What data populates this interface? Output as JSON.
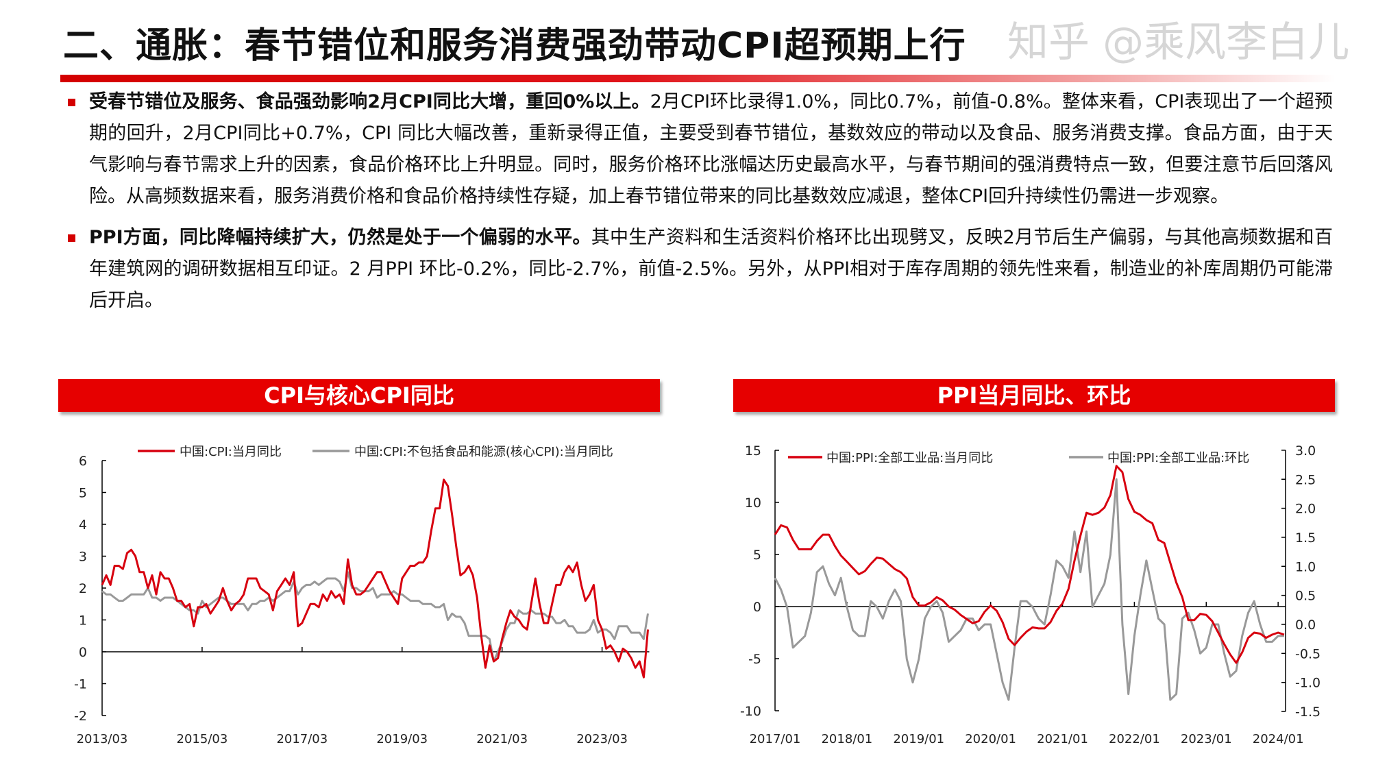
{
  "title": "二、通胀：春节错位和服务消费强劲带动CPI超预期上行",
  "bullets": [
    {
      "bold": "受春节错位及服务、食品强劲影响2月CPI同比大增，重回0%以上。",
      "text": "2月CPI环比录得1.0%，同比0.7%，前值-0.8%。整体来看，CPI表现出了一个超预期的回升，2月CPI同比+0.7%，CPI 同比大幅改善，重新录得正值，主要受到春节错位，基数效应的带动以及食品、服务消费支撑。食品方面，由于天气影响与春节需求上升的因素，食品价格环比上升明显。同时，服务价格环比涨幅达历史最高水平，与春节期间的强消费特点一致，但要注意节后回落风险。从高频数据来看，服务消费价格和食品价格持续性存疑，加上春节错位带来的同比基数效应减退，整体CPI回升持续性仍需进一步观察。"
    },
    {
      "bold": "PPI方面，同比降幅持续扩大，仍然是处于一个偏弱的水平。",
      "text": "其中生产资料和生活资料价格环比出现劈叉，反映2月节后生产偏弱，与其他高频数据和百年建筑网的调研数据相互印证。2 月PPI 环比-0.2%，同比-2.7%，前值-2.5%。另外，从PPI相对于库存周期的领先性来看，制造业的补库周期仍可能滞后开启。"
    }
  ],
  "watermark": "知乎 @乘风李白儿",
  "colors": {
    "red": "#d7000f",
    "gray": "#999999",
    "header": "#e60000"
  },
  "chart_data": [
    {
      "type": "line",
      "title": "CPI与核心CPI同比",
      "x_start": "2013/03",
      "x_end": "2024/02",
      "frequency": "monthly",
      "xticks": [
        "2013/03",
        "2015/03",
        "2017/03",
        "2019/03",
        "2021/03",
        "2023/03"
      ],
      "yticks": [
        "6",
        "5",
        "4",
        "3",
        "2",
        "1",
        "0",
        "-1",
        "-2"
      ],
      "ylim": [
        -2,
        6
      ],
      "legend": "top",
      "series": [
        {
          "name": "中国:CPI:当月同比",
          "color": "#d7000f",
          "values": [
            2.1,
            2.4,
            2.1,
            2.7,
            2.7,
            2.6,
            3.1,
            3.2,
            3.0,
            2.5,
            2.5,
            2.0,
            2.4,
            1.8,
            2.5,
            2.3,
            2.3,
            2.0,
            1.6,
            1.6,
            1.4,
            1.5,
            0.8,
            1.4,
            1.4,
            1.5,
            1.2,
            1.4,
            1.6,
            2.0,
            1.6,
            1.3,
            1.5,
            1.6,
            1.8,
            2.3,
            2.3,
            2.3,
            2.0,
            1.9,
            1.8,
            1.3,
            1.9,
            2.1,
            2.3,
            2.1,
            2.5,
            0.8,
            0.9,
            1.2,
            1.5,
            1.5,
            1.4,
            1.8,
            1.6,
            1.9,
            1.7,
            1.8,
            1.5,
            2.9,
            2.1,
            1.8,
            1.8,
            1.9,
            2.1,
            2.3,
            2.5,
            2.5,
            2.2,
            1.9,
            1.7,
            1.5,
            2.3,
            2.5,
            2.7,
            2.7,
            2.8,
            2.8,
            3.0,
            3.8,
            4.5,
            4.5,
            5.4,
            5.2,
            4.3,
            3.3,
            2.4,
            2.5,
            2.7,
            2.4,
            1.7,
            0.5,
            -0.5,
            0.2,
            -0.3,
            -0.2,
            0.4,
            0.9,
            1.3,
            1.1,
            1.0,
            0.8,
            0.7,
            1.5,
            2.3,
            1.5,
            0.9,
            0.9,
            1.5,
            2.1,
            2.1,
            2.5,
            2.7,
            2.5,
            2.8,
            2.1,
            1.6,
            1.8,
            2.1,
            1.0,
            0.7,
            0.1,
            0.2,
            0.0,
            -0.3,
            0.1,
            0.0,
            -0.2,
            -0.5,
            -0.3,
            -0.8,
            0.7
          ]
        },
        {
          "name": "中国:CPI:不包括食品和能源(核心CPI):当月同比",
          "color": "#999999",
          "values": [
            1.9,
            1.8,
            1.8,
            1.7,
            1.6,
            1.6,
            1.7,
            1.8,
            1.8,
            1.8,
            1.8,
            2.0,
            1.7,
            1.7,
            1.6,
            1.7,
            1.7,
            1.7,
            1.6,
            1.5,
            1.4,
            1.3,
            1.3,
            1.2,
            1.6,
            1.4,
            1.5,
            1.6,
            1.7,
            1.7,
            1.6,
            1.5,
            1.5,
            1.5,
            1.5,
            1.3,
            1.5,
            1.5,
            1.6,
            1.6,
            1.7,
            1.6,
            1.7,
            1.8,
            1.9,
            1.9,
            2.2,
            1.8,
            2.0,
            2.1,
            2.1,
            2.2,
            2.1,
            2.2,
            2.3,
            2.3,
            2.3,
            2.2,
            1.9,
            2.5,
            2.0,
            2.0,
            1.9,
            1.9,
            1.9,
            2.0,
            1.7,
            1.8,
            1.8,
            1.8,
            1.9,
            1.8,
            1.8,
            1.7,
            1.6,
            1.6,
            1.6,
            1.5,
            1.5,
            1.5,
            1.4,
            1.4,
            1.5,
            1.0,
            1.2,
            1.1,
            1.1,
            0.9,
            0.5,
            0.5,
            0.5,
            0.5,
            0.5,
            0.4,
            -0.3,
            0.0,
            0.3,
            0.7,
            0.9,
            0.9,
            1.3,
            1.2,
            1.2,
            1.3,
            1.2,
            1.2,
            1.2,
            1.1,
            1.1,
            0.9,
            0.9,
            1.0,
            0.8,
            0.8,
            0.6,
            0.6,
            0.6,
            0.7,
            1.0,
            0.6,
            0.7,
            0.7,
            0.6,
            0.4,
            0.8,
            0.8,
            0.8,
            0.6,
            0.6,
            0.6,
            0.4,
            1.2
          ]
        }
      ]
    },
    {
      "type": "line",
      "title": "PPI当月同比、环比",
      "x_start": "2017/01",
      "x_end": "2024/02",
      "frequency": "monthly",
      "xticks": [
        "2017/01",
        "2018/01",
        "2019/01",
        "2020/01",
        "2021/01",
        "2022/01",
        "2023/01",
        "2024/01"
      ],
      "yticks_left": [
        "15",
        "10",
        "5",
        "0",
        "-5",
        "-10"
      ],
      "ylim_left": [
        -10,
        15
      ],
      "yticks_right": [
        "3.0",
        "2.5",
        "2.0",
        "1.5",
        "1.0",
        "0.5",
        "0.0",
        "-0.5",
        "-1.0",
        "-1.5"
      ],
      "ylim_right": [
        -1.5,
        3.0
      ],
      "legend": "top",
      "series": [
        {
          "name": "中国:PPI:全部工业品:当月同比",
          "axis": "left",
          "color": "#d7000f",
          "values": [
            6.9,
            7.8,
            7.6,
            6.4,
            5.5,
            5.5,
            5.5,
            6.3,
            6.9,
            6.9,
            5.8,
            4.9,
            4.3,
            3.7,
            3.1,
            3.4,
            4.1,
            4.7,
            4.6,
            4.1,
            3.6,
            3.3,
            2.7,
            0.9,
            0.1,
            0.1,
            0.4,
            0.9,
            0.6,
            0.0,
            -0.3,
            -0.8,
            -1.2,
            -1.6,
            -1.4,
            -0.5,
            0.1,
            -0.4,
            -1.5,
            -3.1,
            -3.7,
            -3.0,
            -2.4,
            -2.0,
            -2.1,
            -2.1,
            -1.5,
            -0.4,
            0.3,
            1.7,
            4.4,
            6.8,
            9.0,
            8.8,
            9.0,
            9.5,
            10.7,
            13.5,
            12.9,
            10.3,
            9.1,
            8.8,
            8.3,
            8.0,
            6.4,
            6.1,
            4.2,
            2.3,
            0.9,
            -1.3,
            -1.3,
            -0.7,
            -0.8,
            -1.4,
            -2.5,
            -3.6,
            -4.6,
            -5.4,
            -4.4,
            -3.0,
            -2.5,
            -2.6,
            -3.0,
            -2.7,
            -2.5,
            -2.7
          ]
        },
        {
          "name": "中国:PPI:全部工业品:环比",
          "axis": "right",
          "color": "#999999",
          "values": [
            0.8,
            0.6,
            0.3,
            -0.4,
            -0.3,
            -0.2,
            0.2,
            0.9,
            1.0,
            0.7,
            0.5,
            0.8,
            0.3,
            -0.1,
            -0.2,
            -0.2,
            0.4,
            0.3,
            0.1,
            0.4,
            0.6,
            0.4,
            -0.6,
            -1.0,
            -0.6,
            0.1,
            0.3,
            0.4,
            0.2,
            -0.3,
            -0.2,
            -0.1,
            0.1,
            0.1,
            -0.1,
            0.0,
            0.0,
            -0.5,
            -1.0,
            -1.3,
            -0.4,
            0.4,
            0.4,
            0.3,
            0.1,
            0.0,
            0.5,
            1.1,
            1.0,
            0.8,
            1.6,
            0.9,
            1.6,
            0.3,
            0.5,
            0.7,
            1.2,
            2.5,
            0.0,
            -1.2,
            -0.2,
            0.5,
            1.1,
            0.6,
            0.1,
            0.0,
            -1.3,
            -1.2,
            0.1,
            0.2,
            -0.1,
            -0.5,
            -0.4,
            0.0,
            0.0,
            -0.5,
            -0.9,
            -0.8,
            -0.2,
            0.2,
            0.4,
            0.0,
            -0.3,
            -0.3,
            -0.2,
            -0.2
          ]
        }
      ]
    }
  ]
}
